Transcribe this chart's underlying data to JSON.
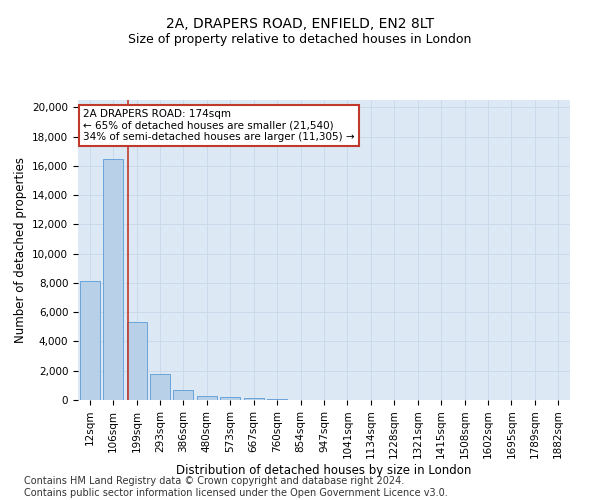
{
  "title_line1": "2A, DRAPERS ROAD, ENFIELD, EN2 8LT",
  "title_line2": "Size of property relative to detached houses in London",
  "xlabel": "Distribution of detached houses by size in London",
  "ylabel": "Number of detached properties",
  "categories": [
    "12sqm",
    "106sqm",
    "199sqm",
    "293sqm",
    "386sqm",
    "480sqm",
    "573sqm",
    "667sqm",
    "760sqm",
    "854sqm",
    "947sqm",
    "1041sqm",
    "1134sqm",
    "1228sqm",
    "1321sqm",
    "1415sqm",
    "1508sqm",
    "1602sqm",
    "1695sqm",
    "1789sqm",
    "1882sqm"
  ],
  "values": [
    8100,
    16500,
    5300,
    1800,
    650,
    300,
    200,
    150,
    100,
    0,
    0,
    0,
    0,
    0,
    0,
    0,
    0,
    0,
    0,
    0,
    0
  ],
  "bar_color": "#b8d0e8",
  "bar_edge_color": "#5b9bd5",
  "vline_color": "#c0392b",
  "annotation_text": "2A DRAPERS ROAD: 174sqm\n← 65% of detached houses are smaller (21,540)\n34% of semi-detached houses are larger (11,305) →",
  "annotation_box_color": "#ffffff",
  "annotation_box_edge_color": "#c0392b",
  "ylim": [
    0,
    20500
  ],
  "yticks": [
    0,
    2000,
    4000,
    6000,
    8000,
    10000,
    12000,
    14000,
    16000,
    18000,
    20000
  ],
  "grid_color": "#c8d8e8",
  "background_color": "#dce9f5",
  "footer_text": "Contains HM Land Registry data © Crown copyright and database right 2024.\nContains public sector information licensed under the Open Government Licence v3.0.",
  "title_fontsize": 10,
  "subtitle_fontsize": 9,
  "axis_label_fontsize": 8.5,
  "tick_fontsize": 7.5,
  "footer_fontsize": 7,
  "annot_fontsize": 7.5
}
